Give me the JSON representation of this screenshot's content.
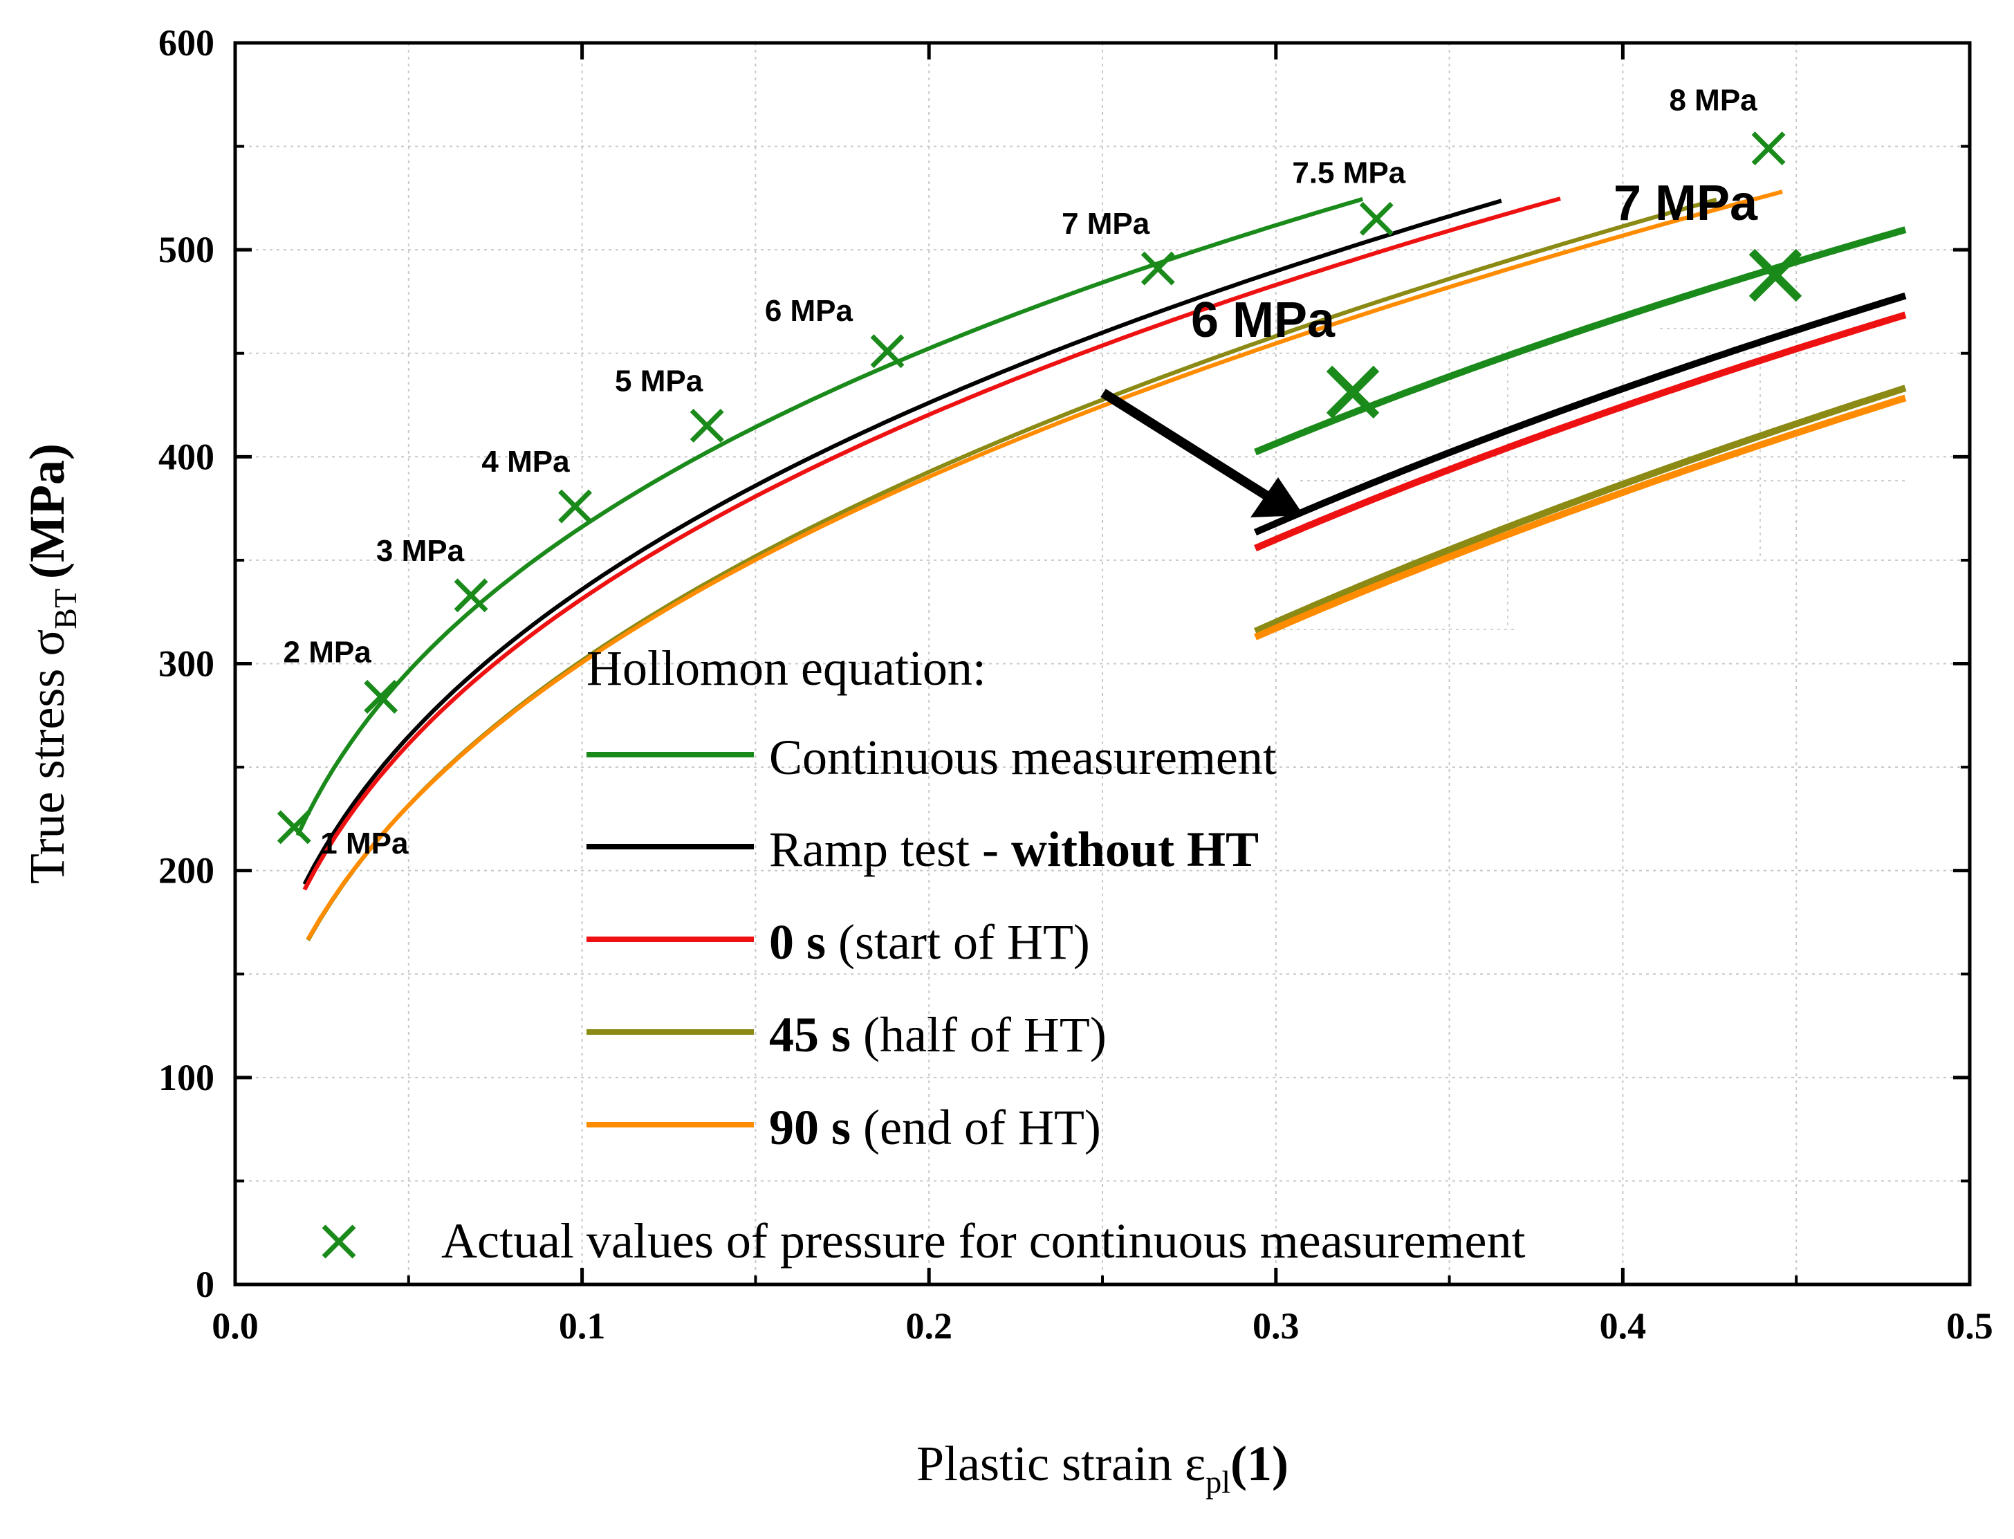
{
  "chart_data": {
    "type": "line",
    "xlabel": "Plastic strain ε",
    "xlabel_sub": "pl",
    "xlabel_unit": "(1)",
    "ylabel": "True stress σ",
    "ylabel_sub": "BT",
    "ylabel_unit": "(MPa)",
    "xlim": [
      0.0,
      0.5
    ],
    "ylim": [
      0,
      600
    ],
    "x_ticks": [
      "0.0",
      "0.1",
      "0.2",
      "0.3",
      "0.4",
      "0.5"
    ],
    "y_ticks": [
      "0",
      "100",
      "200",
      "300",
      "400",
      "500",
      "600"
    ],
    "grid": true,
    "legend": {
      "title": "Hollomon equation:",
      "position": "lower-center",
      "entries": [
        {
          "key": "continuous",
          "text": "Continuous measurement",
          "bold_prefix": ""
        },
        {
          "key": "ramp",
          "text": "Ramp test - ",
          "bold_suffix": "without HT"
        },
        {
          "key": "s0",
          "bold_prefix": "0 s",
          "text": " (start of HT)"
        },
        {
          "key": "s45",
          "bold_prefix": "45 s",
          "text": " (half of HT)"
        },
        {
          "key": "s90",
          "bold_prefix": "90 s",
          "text": " (end of HT)"
        }
      ],
      "marker_entry": "Actual values of pressure for continuous measurement"
    },
    "series": [
      {
        "key": "continuous",
        "name": "Continuous measurement",
        "color": "#1a8a1a",
        "K": 739,
        "n": 0.305,
        "x_start": 0.018,
        "x_end": 0.325
      },
      {
        "key": "ramp",
        "name": "Ramp test - without HT",
        "color": "#000000",
        "K": 740,
        "n": 0.343,
        "x_start": 0.02,
        "x_end": 0.365
      },
      {
        "key": "s0",
        "name": "0 s (start of HT)",
        "color": "#ee1111",
        "K": 730,
        "n": 0.343,
        "x_start": 0.02,
        "x_end": 0.382
      },
      {
        "key": "s45",
        "name": "45 s (half of HT)",
        "color": "#8a8a14",
        "K": 725,
        "n": 0.381,
        "x_start": 0.021,
        "x_end": 0.427
      },
      {
        "key": "s90",
        "name": "90 s (end of HT)",
        "color": "#ff8c00",
        "K": 716,
        "n": 0.377,
        "x_start": 0.021,
        "x_end": 0.446
      }
    ],
    "markers": {
      "color": "#1a8a1a",
      "points": [
        {
          "label": "1 MPa",
          "x": 0.017,
          "y": 221
        },
        {
          "label": "2 MPa",
          "x": 0.042,
          "y": 284
        },
        {
          "label": "3 MPa",
          "x": 0.068,
          "y": 333
        },
        {
          "label": "4 MPa",
          "x": 0.098,
          "y": 376
        },
        {
          "label": "5 MPa",
          "x": 0.136,
          "y": 415
        },
        {
          "label": "6 MPa",
          "x": 0.188,
          "y": 451
        },
        {
          "label": "7 MPa",
          "x": 0.266,
          "y": 491
        },
        {
          "label": "7.5 MPa",
          "x": 0.329,
          "y": 515
        },
        {
          "label": "8 MPa",
          "x": 0.442,
          "y": 549
        }
      ]
    },
    "inset": {
      "x_range": [
        0.17,
        0.29
      ],
      "labels": [
        {
          "label": "6 MPa",
          "x": 0.188,
          "y": 451
        },
        {
          "label": "7 MPa",
          "x": 0.266,
          "y": 491
        }
      ]
    }
  }
}
